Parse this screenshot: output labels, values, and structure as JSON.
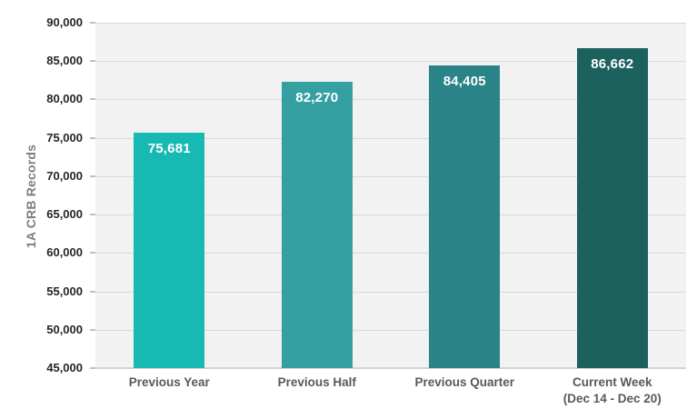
{
  "chart_data": {
    "type": "bar",
    "title": "",
    "xlabel": "",
    "ylabel": "1A CRB Records",
    "categories": [
      "Previous Year",
      "Previous Half",
      "Previous Quarter",
      "Current Week\n(Dec 14 - Dec 20)"
    ],
    "values": [
      75681,
      82270,
      84405,
      86662
    ],
    "value_labels": [
      "75,681",
      "82,270",
      "84,405",
      "86,662"
    ],
    "ylim": [
      45000,
      90000
    ],
    "ytick_step": 5000,
    "ytick_labels": [
      "45,000",
      "50,000",
      "55,000",
      "60,000",
      "65,000",
      "70,000",
      "75,000",
      "80,000",
      "85,000",
      "90,000"
    ],
    "grid": true,
    "legend": false,
    "colors": {
      "bars": [
        "#18B9B2",
        "#35A0A2",
        "#2A8387",
        "#1C615E"
      ],
      "value_label": "#FFFFFF",
      "plot_background": "#F2F2F2",
      "gridline": "#D9D9D9",
      "axis_line": "#D4D4D4",
      "tick_mark": "#C0C0C0",
      "y_tick_label": "#262626",
      "category_label": "#595959",
      "axis_title": "#7F7F7F"
    }
  }
}
